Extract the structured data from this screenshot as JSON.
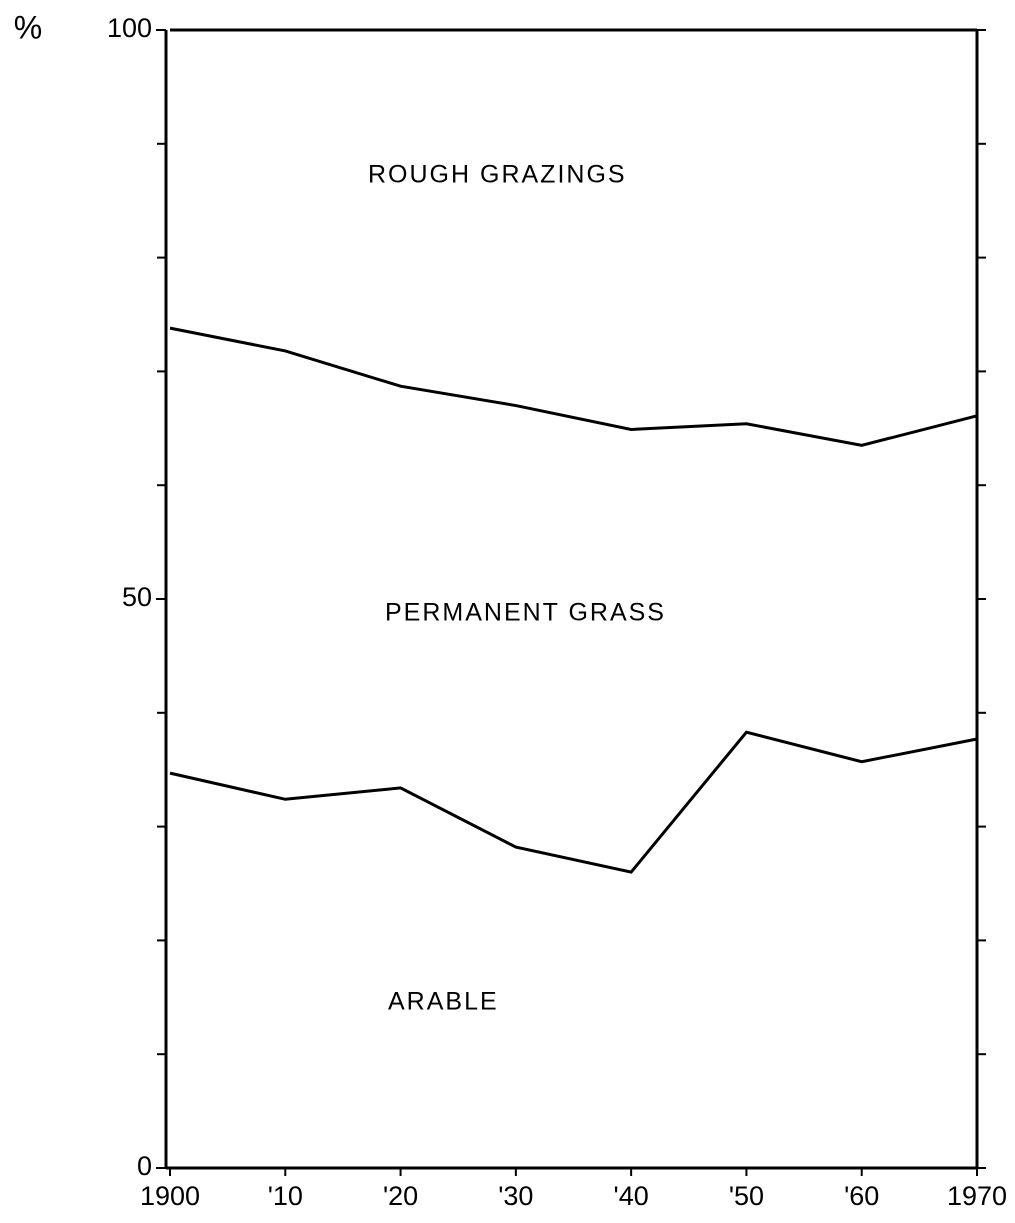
{
  "chart_data": {
    "type": "stacked-line",
    "y_label": "%",
    "x": [
      1900,
      1910,
      1920,
      1930,
      1940,
      1950,
      1960,
      1970
    ],
    "xlim": [
      1900,
      1970
    ],
    "xticks": [
      1900,
      {
        "value": 1910,
        "label": "'10"
      },
      {
        "value": 1920,
        "label": "'20"
      },
      {
        "value": 1930,
        "label": "'30"
      },
      {
        "value": 1940,
        "label": "'40"
      },
      {
        "value": 1950,
        "label": "'50"
      },
      {
        "value": 1960,
        "label": "'60"
      },
      1970
    ],
    "ylim": [
      0,
      100
    ],
    "yticks": [
      0,
      50,
      100
    ],
    "yminorticks": [
      10,
      20,
      30,
      40,
      60,
      70,
      80,
      90
    ],
    "color": "#000000",
    "series": [
      {
        "name": "ARABLE",
        "values": [
          34.7,
          32.4,
          33.4,
          28.2,
          26.0,
          38.3,
          35.7,
          37.7
        ]
      },
      {
        "name": "PERMANENT GRASS",
        "values": [
          39.1,
          39.4,
          35.3,
          38.8,
          38.9,
          27.1,
          27.8,
          28.4
        ]
      },
      {
        "name": "ROUGH GRAZINGS",
        "values": [
          26.2,
          28.2,
          31.3,
          33.0,
          35.1,
          34.6,
          36.5,
          33.9
        ]
      }
    ]
  }
}
